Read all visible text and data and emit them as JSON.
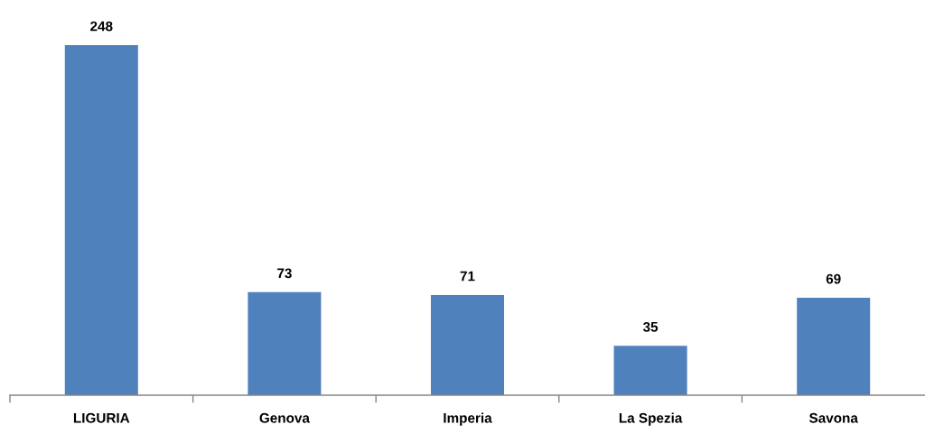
{
  "chart_data": {
    "type": "bar",
    "categories": [
      "LIGURIA",
      "Genova",
      "Imperia",
      "La Spezia",
      "Savona"
    ],
    "values": [
      248,
      73,
      71,
      35,
      69
    ],
    "color": "#4f81bd",
    "data_labels": true,
    "grid": false,
    "legend": false
  }
}
